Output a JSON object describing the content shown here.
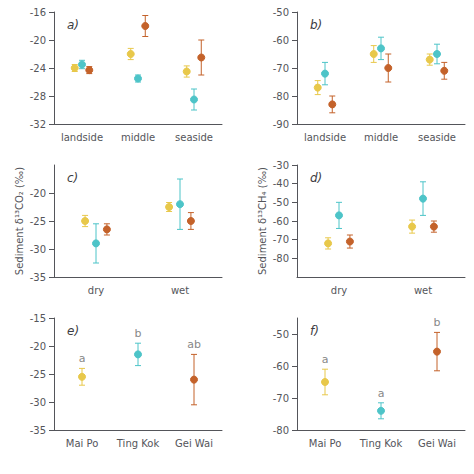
{
  "chart_data": [
    {
      "type": "scatter",
      "title": "a)",
      "categories": [
        "landside",
        "middle",
        "seaside"
      ],
      "series": [
        {
          "color": "#E8C84A",
          "values": [
            -24.0,
            -22.0,
            -24.5
          ],
          "yerr": [
            0.5,
            0.8,
            0.8
          ]
        },
        {
          "color": "#4DC4C8",
          "values": [
            -23.5,
            -25.5,
            -28.5
          ],
          "yerr": [
            0.6,
            0.5,
            1.5
          ]
        },
        {
          "color": "#C4622A",
          "values": [
            -24.3,
            -18.0,
            -22.5
          ],
          "yerr": [
            0.5,
            1.5,
            2.5
          ]
        }
      ],
      "ylim": [
        -32,
        -16
      ],
      "yticks": [
        -32,
        -28,
        -24,
        -20,
        -16
      ],
      "grid": false
    },
    {
      "type": "scatter",
      "title": "b)",
      "categories": [
        "landside",
        "middle",
        "seaside"
      ],
      "series": [
        {
          "color": "#E8C84A",
          "values": [
            -77.0,
            -65.0,
            -67.0
          ],
          "yerr": [
            2.5,
            3.0,
            2.0
          ]
        },
        {
          "color": "#4DC4C8",
          "values": [
            -72.0,
            -63.0,
            -65.0
          ],
          "yerr": [
            4.0,
            4.0,
            3.5
          ]
        },
        {
          "color": "#C4622A",
          "values": [
            -83.0,
            -70.0,
            -71.0
          ],
          "yerr": [
            3.0,
            5.0,
            3.0
          ]
        }
      ],
      "ylim": [
        -90,
        -50
      ],
      "yticks": [
        -90,
        -80,
        -70,
        -60,
        -50
      ],
      "grid": false
    },
    {
      "type": "scatter",
      "title": "c)",
      "categories": [
        "dry",
        "wet"
      ],
      "ylabel": "Sediment δ¹³CO₂ (‰)",
      "series": [
        {
          "color": "#E8C84A",
          "values": [
            -25.0,
            -22.5
          ],
          "yerr": [
            1.0,
            0.8
          ]
        },
        {
          "color": "#4DC4C8",
          "values": [
            -29.0,
            -22.0
          ],
          "yerr": [
            3.5,
            4.5
          ]
        },
        {
          "color": "#C4622A",
          "values": [
            -26.5,
            -25.0
          ],
          "yerr": [
            1.0,
            1.5
          ]
        }
      ],
      "ylim": [
        -35,
        -15
      ],
      "yticks": [
        -35,
        -30,
        -25,
        -20
      ],
      "grid": false
    },
    {
      "type": "scatter",
      "title": "d)",
      "categories": [
        "dry",
        "wet"
      ],
      "ylabel": "Sediment δ¹³CH₄ (‰)",
      "series": [
        {
          "color": "#E8C84A",
          "values": [
            -72.0,
            -63.0
          ],
          "yerr": [
            3.0,
            3.5
          ]
        },
        {
          "color": "#4DC4C8",
          "values": [
            -57.0,
            -48.0
          ],
          "yerr": [
            7.0,
            9.0
          ]
        },
        {
          "color": "#C4622A",
          "values": [
            -71.0,
            -63.0
          ],
          "yerr": [
            3.5,
            3.0
          ]
        }
      ],
      "ylim": [
        -90,
        -30
      ],
      "yticks": [
        -80,
        -70,
        -60,
        -50,
        -40,
        -30
      ],
      "grid": false
    },
    {
      "type": "scatter",
      "title": "e)",
      "categories": [
        "Mai Po",
        "Ting Kok",
        "Gei Wai"
      ],
      "series": [
        {
          "color": "#E8C84A",
          "values": [
            -25.5,
            null,
            null
          ],
          "yerr": [
            1.5,
            null,
            null
          ],
          "annotation": "a"
        },
        {
          "color": "#4DC4C8",
          "values": [
            null,
            -21.5,
            null
          ],
          "yerr": [
            null,
            2.0,
            null
          ],
          "annotation": "b"
        },
        {
          "color": "#C4622A",
          "values": [
            null,
            null,
            -26.0
          ],
          "yerr": [
            null,
            null,
            4.5
          ],
          "annotation": "ab"
        }
      ],
      "ylim": [
        -35,
        -15
      ],
      "yticks": [
        -35,
        -30,
        -25,
        -20,
        -15
      ],
      "grid": false
    },
    {
      "type": "scatter",
      "title": "f)",
      "categories": [
        "Mai Po",
        "Ting Kok",
        "Gei Wai"
      ],
      "series": [
        {
          "color": "#E8C84A",
          "values": [
            -65.0,
            null,
            null
          ],
          "yerr": [
            4.0,
            null,
            null
          ],
          "annotation": "a"
        },
        {
          "color": "#4DC4C8",
          "values": [
            null,
            -74.0,
            null
          ],
          "yerr": [
            null,
            2.5,
            null
          ],
          "annotation": "a"
        },
        {
          "color": "#C4622A",
          "values": [
            null,
            null,
            -55.5
          ],
          "yerr": [
            null,
            null,
            6.0
          ],
          "annotation": "b"
        }
      ],
      "ylim": [
        -80,
        -45
      ],
      "yticks": [
        -80,
        -70,
        -60,
        -50
      ],
      "grid": false
    }
  ]
}
